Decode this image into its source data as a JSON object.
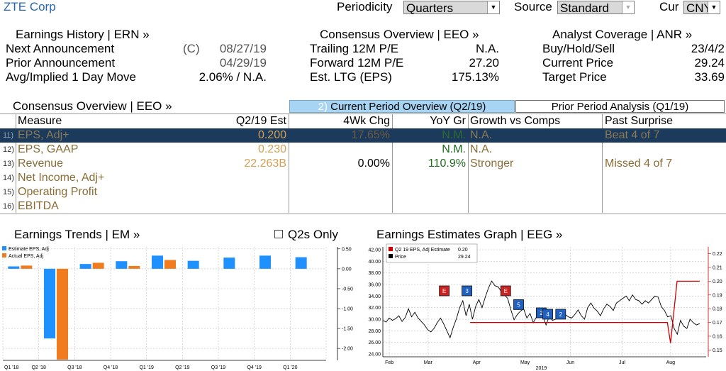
{
  "header": {
    "company": "ZTE Corp",
    "periodicity_label": "Periodicity",
    "periodicity_value": "Quarters",
    "source_label": "Source",
    "source_value": "Standard",
    "cur_label": "Cur",
    "cur_value": "CNY"
  },
  "earnings_history": {
    "title": "Earnings History | ERN »",
    "rows": [
      {
        "label": "Next Announcement",
        "flag": "(C)",
        "value": "08/27/19"
      },
      {
        "label": "Prior Announcement",
        "flag": "",
        "value": "04/29/19"
      },
      {
        "label": "Avg/Implied 1 Day Move",
        "flag": "",
        "value": "2.06% / N.A."
      }
    ]
  },
  "consensus_top": {
    "title": "Consensus Overview | EEO »",
    "rows": [
      {
        "label": "Trailing 12M P/E",
        "value": "N.A."
      },
      {
        "label": "Forward 12M P/E",
        "value": "27.20"
      },
      {
        "label": "Est. LTG (EPS)",
        "value": "175.13%"
      }
    ]
  },
  "analyst": {
    "title": "Analyst Coverage | ANR »",
    "rows": [
      {
        "label": "Buy/Hold/Sell",
        "value": "23/4/2"
      },
      {
        "label": "Current Price",
        "value": "29.24"
      },
      {
        "label": "Target Price",
        "value": "33.69"
      }
    ]
  },
  "consensus_table": {
    "title": "Consensus Overview | EEO »",
    "tab_active_prefix": "2)",
    "tab_active": "Current Period Overview (Q2/19)",
    "tab_inactive": "Prior Period Analysis (Q1/19)",
    "columns": [
      "Measure",
      "Q2/19 Est",
      "4Wk Chg",
      "YoY Gr",
      "Growth vs Comps",
      "Past Surprise"
    ],
    "rows": [
      {
        "num": "11)",
        "measure": "EPS, Adj+",
        "est": "0.200",
        "chg": "17.65%",
        "yoy": "N.M.",
        "comps": "N.A.",
        "surprise": "Beat 4 of 7"
      },
      {
        "num": "12)",
        "measure": "EPS, GAAP",
        "est": "0.230",
        "chg": "",
        "yoy": "N.M.",
        "comps": "N.A.",
        "surprise": ""
      },
      {
        "num": "13)",
        "measure": "Revenue",
        "est": "22.263B",
        "chg": "0.00%",
        "yoy": "110.9%",
        "comps": "Stronger",
        "surprise": "Missed 4 of 7"
      },
      {
        "num": "14)",
        "measure": "Net Income, Adj+",
        "est": "",
        "chg": "",
        "yoy": "",
        "comps": "",
        "surprise": ""
      },
      {
        "num": "15)",
        "measure": "Operating Profit",
        "est": "",
        "chg": "",
        "yoy": "",
        "comps": "",
        "surprise": ""
      },
      {
        "num": "16)",
        "measure": "EBITDA",
        "est": "",
        "chg": "",
        "yoy": "",
        "comps": "",
        "surprise": ""
      }
    ]
  },
  "earnings_trends": {
    "title": "Earnings Trends | EM »",
    "checkbox_label": "Q2s Only"
  },
  "estimates_graph": {
    "title": "Earnings Estimates Graph | EEG »"
  },
  "chart_data": [
    {
      "type": "bar",
      "categories": [
        "Q1 '18",
        "Q2 '18",
        "Q3 '18",
        "Q4 '18",
        "Q1 '19",
        "Q2 '19",
        "Q3 '19",
        "Q4 '19",
        "Q1 '20"
      ],
      "series": [
        {
          "name": "Estimate EPS, Adj",
          "color": "#1e90ff",
          "values": [
            0.06,
            -1.75,
            0.12,
            0.19,
            0.33,
            0.2,
            0.28,
            0.33,
            0.29
          ]
        },
        {
          "name": "Actual EPS, Adj",
          "color": "#f07c1e",
          "values": [
            0.08,
            -2.28,
            0.15,
            0.07,
            0.22,
            null,
            null,
            null,
            null
          ]
        }
      ],
      "yticks": [
        "0.50",
        "0.00",
        "-0.50",
        "-1.00",
        "-1.50",
        "-2.00"
      ],
      "ylim": [
        -2.3,
        0.55
      ],
      "grid": true,
      "legend": "top-left"
    },
    {
      "type": "line",
      "x_labels": [
        "Feb",
        "Mar",
        "Apr",
        "May",
        "Jun",
        "Jul",
        "Aug"
      ],
      "x_year": "2019",
      "legend": [
        {
          "name": "Q2 19 EPS, Adj Estimate",
          "value": "0.20",
          "color": "#cc0000"
        },
        {
          "name": "Price",
          "value": "29.24",
          "color": "#000000"
        }
      ],
      "y_left_ticks": [
        "42.00",
        "40.00",
        "38.00",
        "36.00",
        "34.00",
        "32.00",
        "30.00",
        "28.00",
        "26.00",
        "24.00"
      ],
      "y_left_lim": [
        23.5,
        42.5
      ],
      "y_right_ticks": [
        "0.22",
        "0.21",
        "0.20",
        "0.19",
        "0.18",
        "0.17",
        "0.16",
        "0.15"
      ],
      "y_right_lim": [
        0.145,
        0.225
      ],
      "price": [
        29.8,
        29.5,
        30.2,
        29.8,
        30.1,
        30.6,
        29.6,
        30.3,
        31.8,
        30.4,
        31.2,
        30.2,
        29.6,
        29.0,
        28.2,
        27.8,
        28.4,
        29.4,
        30.2,
        29.2,
        28.0,
        26.8,
        28.6,
        30.1,
        32.0,
        33.2,
        30.6,
        32.6,
        30.0,
        32.2,
        33.4,
        32.0,
        33.8,
        35.4,
        36.6,
        35.8,
        35.6,
        34.8,
        34.2,
        33.6,
        31.6,
        29.9,
        30.8,
        31.4,
        31.8,
        30.2,
        31.0,
        29.4,
        30.4,
        31.2,
        30.5,
        29.0,
        30.5,
        29.8,
        30.0,
        30.6,
        31.4,
        30.8,
        30.4,
        30.2,
        30.8,
        31.6,
        30.6,
        30.0,
        32.0,
        32.8,
        31.9,
        31.4,
        30.6,
        31.8,
        32.6,
        32.2,
        31.5,
        32.8,
        33.2,
        33.6,
        34.0,
        33.2,
        34.2,
        33.4,
        33.2,
        32.6,
        33.2,
        32.8,
        33.4,
        34.0,
        33.8,
        32.2,
        31.5,
        30.4,
        30.6,
        28.4,
        27.4,
        29.8,
        28.8,
        28.4,
        30.0,
        29.4,
        29.0,
        29.24
      ],
      "estimate": [
        {
          "x": 0.0,
          "y": null
        },
        {
          "x": 0.27,
          "y": 0.17
        },
        {
          "x": 0.88,
          "y": 0.17
        },
        {
          "x": 0.89,
          "y": 0.155
        },
        {
          "x": 0.91,
          "y": 0.2
        },
        {
          "x": 0.98,
          "y": 0.2
        }
      ],
      "markers": [
        {
          "label": "E",
          "color": "#cc2222",
          "x": 0.19,
          "y": 0.193
        },
        {
          "label": "3",
          "color": "#2060c0",
          "x": 0.26,
          "y": 0.193
        },
        {
          "label": "E",
          "color": "#cc2222",
          "x": 0.38,
          "y": 0.193
        },
        {
          "label": "5",
          "color": "#2060c0",
          "x": 0.42,
          "y": 0.183
        },
        {
          "label": "2",
          "color": "#2060c0",
          "x": 0.49,
          "y": 0.177
        },
        {
          "label": "4",
          "color": "#2060c0",
          "x": 0.51,
          "y": 0.176
        },
        {
          "label": "2",
          "color": "#2060c0",
          "x": 0.55,
          "y": 0.176
        }
      ]
    }
  ]
}
